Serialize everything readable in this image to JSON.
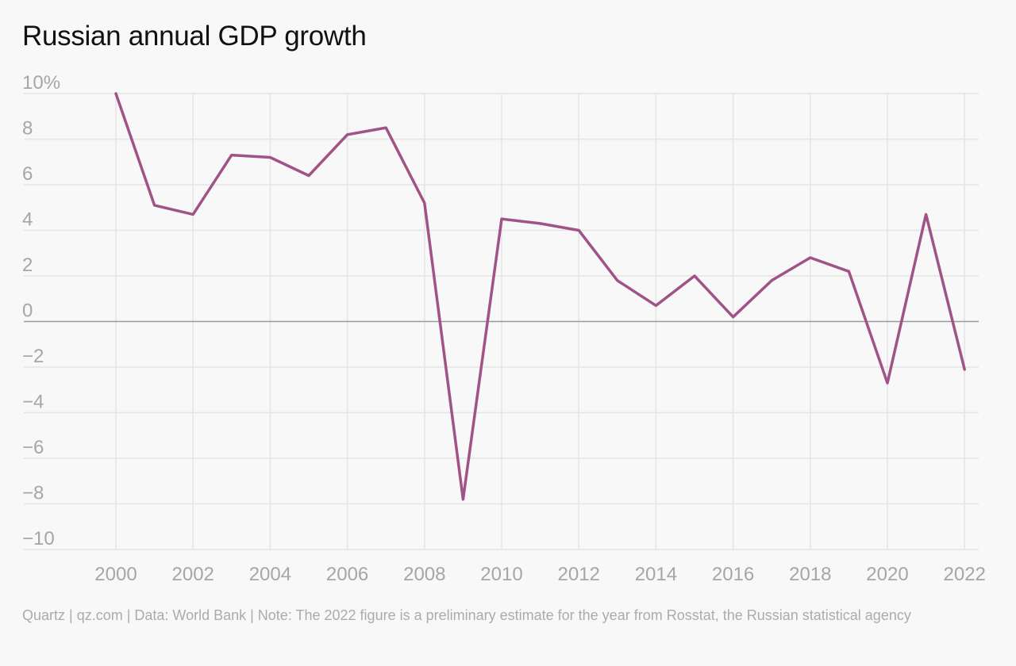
{
  "chart_data": {
    "type": "line",
    "title": "Russian annual GDP growth",
    "xlabel": "",
    "ylabel": "",
    "x": [
      2000,
      2001,
      2002,
      2003,
      2004,
      2005,
      2006,
      2007,
      2008,
      2009,
      2010,
      2011,
      2012,
      2013,
      2014,
      2015,
      2016,
      2017,
      2018,
      2019,
      2020,
      2021,
      2022
    ],
    "series": [
      {
        "values": [
          10.0,
          5.1,
          4.7,
          7.3,
          7.2,
          6.4,
          8.2,
          8.5,
          5.2,
          -7.8,
          4.5,
          4.3,
          4.0,
          1.8,
          0.7,
          2.0,
          0.2,
          1.8,
          2.8,
          2.2,
          -2.7,
          4.7,
          -2.1
        ],
        "color": "#a05386"
      }
    ],
    "xlim": [
      1998.3,
      2022.5
    ],
    "ylim": [
      -10,
      10
    ],
    "x_ticks": [
      2000,
      2002,
      2004,
      2006,
      2008,
      2010,
      2012,
      2014,
      2016,
      2018,
      2020,
      2022
    ],
    "x_tick_labels": [
      "2000",
      "2002",
      "2004",
      "2006",
      "2008",
      "2010",
      "2012",
      "2014",
      "2016",
      "2018",
      "2020",
      "2022"
    ],
    "y_ticks": [
      10,
      8,
      6,
      4,
      2,
      0,
      -2,
      -4,
      -6,
      -8,
      -10
    ],
    "y_tick_labels": [
      "10%",
      "8",
      "6",
      "4",
      "2",
      "0",
      "−2",
      "−4",
      "−6",
      "−8",
      "−10"
    ],
    "grid": true,
    "colors": {
      "line": "#a05386",
      "grid": "#e4e4e4",
      "zero_line": "#9a9a9a",
      "tick_text": "#a6a6a6",
      "background": "#f8f8f8"
    }
  },
  "source_note": "Quartz | qz.com | Data: World Bank | Note: The 2022 figure is a preliminary estimate for the year from Rosstat, the Russian statistical agency"
}
